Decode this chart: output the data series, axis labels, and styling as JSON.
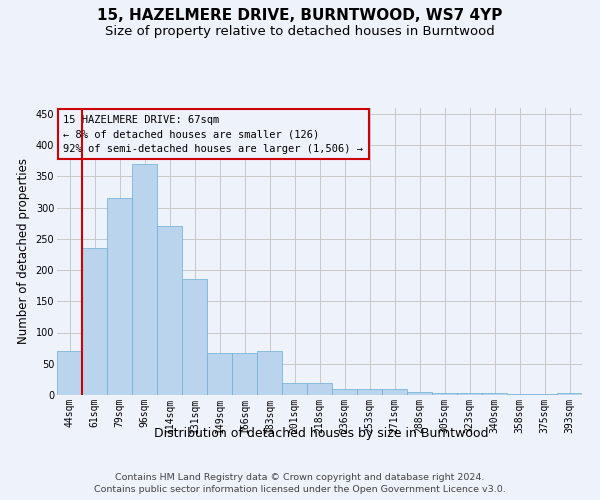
{
  "title": "15, HAZELMERE DRIVE, BURNTWOOD, WS7 4YP",
  "subtitle": "Size of property relative to detached houses in Burntwood",
  "xlabel": "Distribution of detached houses by size in Burntwood",
  "ylabel": "Number of detached properties",
  "footer_line1": "Contains HM Land Registry data © Crown copyright and database right 2024.",
  "footer_line2": "Contains public sector information licensed under the Open Government Licence v3.0.",
  "categories": [
    "44sqm",
    "61sqm",
    "79sqm",
    "96sqm",
    "114sqm",
    "131sqm",
    "149sqm",
    "166sqm",
    "183sqm",
    "201sqm",
    "218sqm",
    "236sqm",
    "253sqm",
    "271sqm",
    "288sqm",
    "305sqm",
    "323sqm",
    "340sqm",
    "358sqm",
    "375sqm",
    "393sqm"
  ],
  "values": [
    70,
    235,
    315,
    370,
    270,
    185,
    67,
    68,
    70,
    20,
    19,
    10,
    10,
    10,
    5,
    4,
    4,
    4,
    1,
    1,
    4
  ],
  "bar_color": "#bad4ed",
  "bar_edge_color": "#6aaed6",
  "grid_color": "#c8c8c8",
  "ref_line_x": 1.5,
  "ref_line_color": "#cc0000",
  "ann_line1": "15 HAZELMERE DRIVE: 67sqm",
  "ann_line2": "← 8% of detached houses are smaller (126)",
  "ann_line3": "92% of semi-detached houses are larger (1,506) →",
  "ann_edge_color": "#cc0000",
  "ylim_max": 460,
  "yticks": [
    0,
    50,
    100,
    150,
    200,
    250,
    300,
    350,
    400,
    450
  ],
  "bg_color": "#eef2fb",
  "title_fontsize": 11,
  "subtitle_fontsize": 9.5,
  "ylabel_fontsize": 8.5,
  "xlabel_fontsize": 9,
  "tick_fontsize": 7,
  "ann_fontsize": 7.5,
  "footer_fontsize": 6.8
}
